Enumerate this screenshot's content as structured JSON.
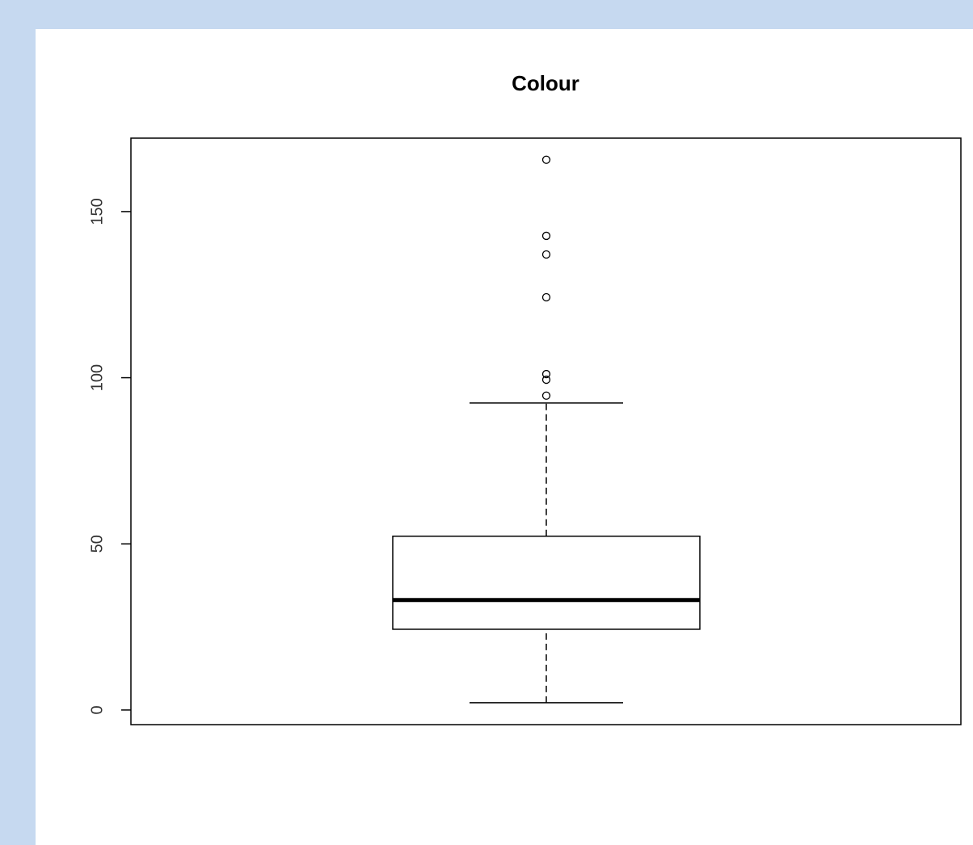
{
  "chart_data": {
    "type": "box",
    "title": "Colour",
    "whisker_low": 2.2,
    "q1": 24.3,
    "median": 33.1,
    "q3": 52.3,
    "whisker_high": 92.4,
    "outliers": [
      165.6,
      142.7,
      137.1,
      124.2,
      101.1,
      99.4,
      94.6
    ],
    "color": "#000000",
    "ylim": [
      -4.4,
      172.1
    ],
    "yticks": [
      0,
      50,
      100,
      150
    ],
    "grid": false
  }
}
